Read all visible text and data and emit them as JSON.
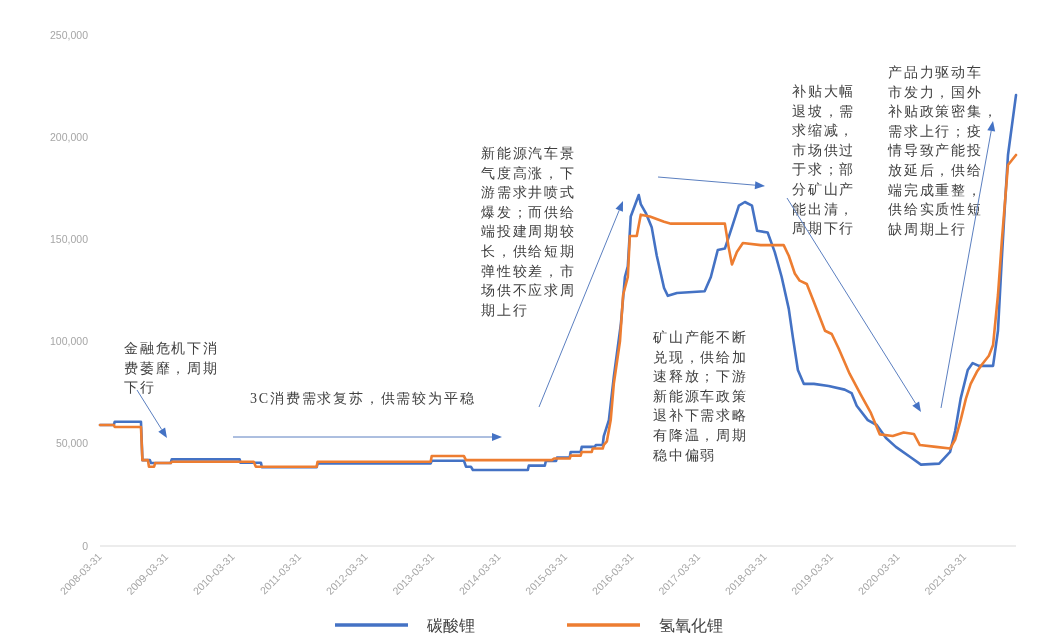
{
  "chart_data": {
    "type": "line",
    "line_style": "solid",
    "legend": "bottom",
    "xlim": [
      "2008-03-31",
      "2022-01-08"
    ],
    "xticks": [
      "2008-03-31",
      "2009-03-31",
      "2010-03-31",
      "2011-03-31",
      "2012-03-31",
      "2013-03-31",
      "2014-03-31",
      "2015-03-31",
      "2016-03-31",
      "2017-03-31",
      "2018-03-31",
      "2019-03-31",
      "2020-03-31",
      "2021-03-31"
    ],
    "ylim": [
      0,
      250000
    ],
    "yticks": [
      {
        "value": 0,
        "label": "0"
      },
      {
        "value": 50000,
        "label": "50,000"
      },
      {
        "value": 100000,
        "label": "100,000"
      },
      {
        "value": 150000,
        "label": "150,000"
      },
      {
        "value": 200000,
        "label": "200,000"
      },
      {
        "value": 250000,
        "label": "250,000"
      }
    ],
    "series": [
      {
        "name": "碳酸锂",
        "color": "#4472c4",
        "x": [
          "2008-03-31",
          "2008-06-15",
          "2008-06-20",
          "2008-11-11",
          "2008-11-19",
          "2008-12-30",
          "2009-01-05",
          "2009-04-23",
          "2009-04-29",
          "2010-05-07",
          "2010-05-12",
          "2010-09-01",
          "2010-09-06",
          "2011-07-04",
          "2011-07-09",
          "2013-03-21",
          "2013-03-27",
          "2013-09-20",
          "2013-10-01",
          "2013-10-28",
          "2013-11-08",
          "2014-09-06",
          "2014-09-11",
          "2014-12-08",
          "2014-12-14",
          "2015-02-08",
          "2015-02-13",
          "2015-04-24",
          "2015-04-29",
          "2015-06-23",
          "2015-06-29",
          "2015-09-09",
          "2015-09-14",
          "2015-10-22",
          "2015-10-28",
          "2015-11-25",
          "2015-12-22",
          "2016-01-30",
          "2016-02-21",
          "2016-03-08",
          "2016-03-24",
          "2016-05-07",
          "2016-05-18",
          "2016-06-15",
          "2016-07-17",
          "2016-08-14",
          "2016-09-23",
          "2016-10-14",
          "2016-12-03",
          "2017-05-04",
          "2017-06-07",
          "2017-07-15",
          "2017-08-23",
          "2017-10-01",
          "2017-11-08",
          "2017-12-11",
          "2018-01-19",
          "2018-02-16",
          "2018-04-15",
          "2018-05-24",
          "2018-07-01",
          "2018-08-09",
          "2018-09-01",
          "2018-09-28",
          "2018-10-31",
          "2018-12-25",
          "2019-03-16",
          "2019-06-12",
          "2019-07-20",
          "2019-08-17",
          "2019-10-17",
          "2019-12-05",
          "2020-01-25",
          "2020-03-19",
          "2020-06-10",
          "2020-08-04",
          "2020-11-12",
          "2021-01-11",
          "2021-02-08",
          "2021-03-10",
          "2021-04-18",
          "2021-05-15",
          "2021-06-18",
          "2021-09-04",
          "2021-10-01",
          "2021-10-22",
          "2021-11-08",
          "2021-11-25",
          "2022-01-08"
        ],
        "values": [
          59200,
          59200,
          60800,
          60800,
          42000,
          42000,
          40600,
          40600,
          42400,
          42400,
          40700,
          40700,
          38500,
          38500,
          40400,
          40400,
          41700,
          41700,
          38800,
          38800,
          37200,
          37200,
          39300,
          39300,
          41600,
          41600,
          43300,
          43300,
          46000,
          46000,
          48500,
          48500,
          49400,
          49400,
          53800,
          61600,
          82700,
          108800,
          131600,
          136800,
          161200,
          171700,
          167300,
          162900,
          156000,
          142000,
          126200,
          122400,
          123800,
          124600,
          131600,
          144800,
          145500,
          156000,
          166500,
          168300,
          166500,
          154200,
          153400,
          143800,
          131600,
          116000,
          101800,
          86100,
          79300,
          79300,
          78300,
          76500,
          74800,
          68600,
          61600,
          59200,
          52800,
          48500,
          43300,
          39800,
          40300,
          46000,
          56400,
          72100,
          86100,
          89500,
          88100,
          88100,
          105300,
          140400,
          166500,
          191300,
          220600
        ]
      },
      {
        "name": "氢氧化锂",
        "color": "#ed7d31",
        "x": [
          "2008-03-31",
          "2008-06-15",
          "2008-06-20",
          "2008-11-11",
          "2008-11-19",
          "2008-12-19",
          "2008-12-25",
          "2009-01-22",
          "2009-01-28",
          "2009-04-23",
          "2009-04-29",
          "2010-07-23",
          "2010-08-04",
          "2011-07-04",
          "2011-07-09",
          "2013-03-21",
          "2013-03-27",
          "2013-09-20",
          "2013-10-01",
          "2015-01-16",
          "2015-01-28",
          "2015-04-24",
          "2015-04-29",
          "2015-06-23",
          "2015-06-29",
          "2015-08-23",
          "2015-08-28",
          "2015-10-22",
          "2015-10-28",
          "2015-11-14",
          "2015-12-05",
          "2015-12-22",
          "2016-01-25",
          "2016-02-11",
          "2016-03-08",
          "2016-03-19",
          "2016-04-26",
          "2016-05-18",
          "2016-07-07",
          "2016-09-23",
          "2016-10-31",
          "2017-08-23",
          "2017-09-14",
          "2017-10-01",
          "2017-10-28",
          "2017-11-30",
          "2018-03-08",
          "2018-07-12",
          "2018-08-09",
          "2018-09-11",
          "2018-10-08",
          "2018-11-16",
          "2018-12-25",
          "2019-02-24",
          "2019-04-02",
          "2019-05-10",
          "2019-07-09",
          "2019-09-09",
          "2019-11-03",
          "2019-12-22",
          "2020-03-02",
          "2020-05-01",
          "2020-06-26",
          "2020-07-29",
          "2020-10-25",
          "2021-01-11",
          "2021-02-08",
          "2021-03-10",
          "2021-04-08",
          "2021-05-04",
          "2021-06-07",
          "2021-07-04",
          "2021-08-12",
          "2021-09-04",
          "2021-10-01",
          "2021-10-22",
          "2021-11-25",
          "2022-01-08"
        ],
        "values": [
          59200,
          59200,
          58200,
          58200,
          42000,
          42000,
          38800,
          38800,
          40600,
          40600,
          41200,
          41200,
          38800,
          38800,
          41200,
          41200,
          44000,
          44000,
          42000,
          42000,
          42800,
          42800,
          44200,
          44200,
          46000,
          46000,
          47700,
          47700,
          49400,
          51200,
          61600,
          79300,
          100300,
          122800,
          131600,
          151700,
          151700,
          162100,
          161200,
          158600,
          157700,
          157700,
          145500,
          137700,
          143800,
          148200,
          147200,
          147200,
          142000,
          133300,
          129800,
          128200,
          119400,
          105300,
          103700,
          96600,
          84300,
          73900,
          65100,
          54600,
          53800,
          55500,
          54800,
          49400,
          48500,
          47700,
          52000,
          61600,
          72100,
          79300,
          85200,
          88700,
          93100,
          98300,
          122800,
          149000,
          186400,
          191300
        ]
      }
    ],
    "annotations": [
      "金融危机下消费萎靡，周期下行",
      "3C消费需求复苏，供需较为平稳",
      "新能源汽车景气度高涨，下游需求井喷式爆发；而供给端投建周期较长，供给短期弹性较差，市场供不应求周期上行",
      "矿山产能不断兑现，供给加速释放；下游新能源车政策退补下需求略有降温，周期稳中偏弱",
      "补贴大幅退坡，需求缩减，市场供过于求；部分矿山产能出清，周期下行",
      "产品力驱动车市发力，国外补贴政策密集，需求上行；疫情导致产能投放延后，供给端完成重整，供给实质性短缺周期上行"
    ]
  }
}
